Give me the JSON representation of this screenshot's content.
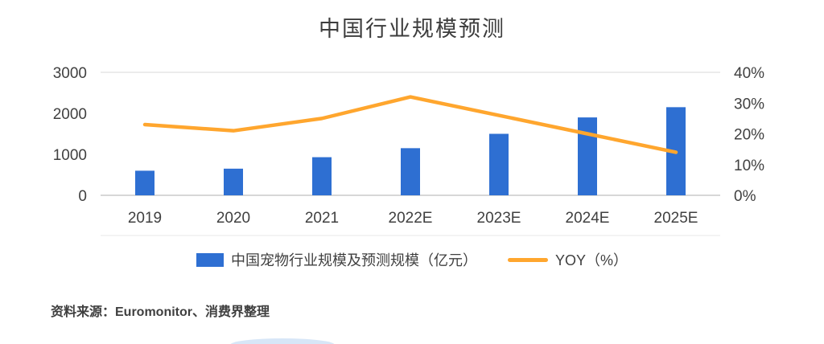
{
  "title": "中国行业规模预测",
  "source_note": "资料来源：Euromonitor、消费界整理",
  "legend": {
    "bars_label": "中国宠物行业规模及预测规模（亿元）",
    "line_label": "YOY（%）"
  },
  "colors": {
    "bar": "#2e6fd2",
    "line": "#ffa62e",
    "axis_text": "#404040",
    "gridline_top": "#d9d9d9",
    "axis_line": "#bfbfbf",
    "bottom_border": "#e7e7e7"
  },
  "chart_data": {
    "type": "bar",
    "subtype": "bar+line combo",
    "title": "中国行业规模预测",
    "categories": [
      "2019",
      "2020",
      "2021",
      "2022E",
      "2023E",
      "2024E",
      "2025E"
    ],
    "series": [
      {
        "name": "中国宠物行业规模及预测规模（亿元）",
        "type": "bar",
        "axis": "left",
        "values": [
          600,
          650,
          930,
          1150,
          1500,
          1900,
          2150
        ]
      },
      {
        "name": "YOY（%）",
        "type": "line",
        "axis": "right",
        "values": [
          23,
          21,
          25,
          32,
          26,
          20,
          14
        ]
      }
    ],
    "left_axis": {
      "min": 0,
      "max": 3000,
      "tick_values": [
        0,
        1000,
        2000,
        3000
      ],
      "tick_labels": [
        "0",
        "1000",
        "2000",
        "3000"
      ]
    },
    "right_axis": {
      "min": 0,
      "max": 40,
      "tick_values": [
        0,
        10,
        20,
        30,
        40
      ],
      "tick_labels": [
        "0%",
        "10%",
        "20%",
        "30%",
        "40%"
      ]
    },
    "grid": "top line only",
    "legend_position": "bottom-center"
  }
}
